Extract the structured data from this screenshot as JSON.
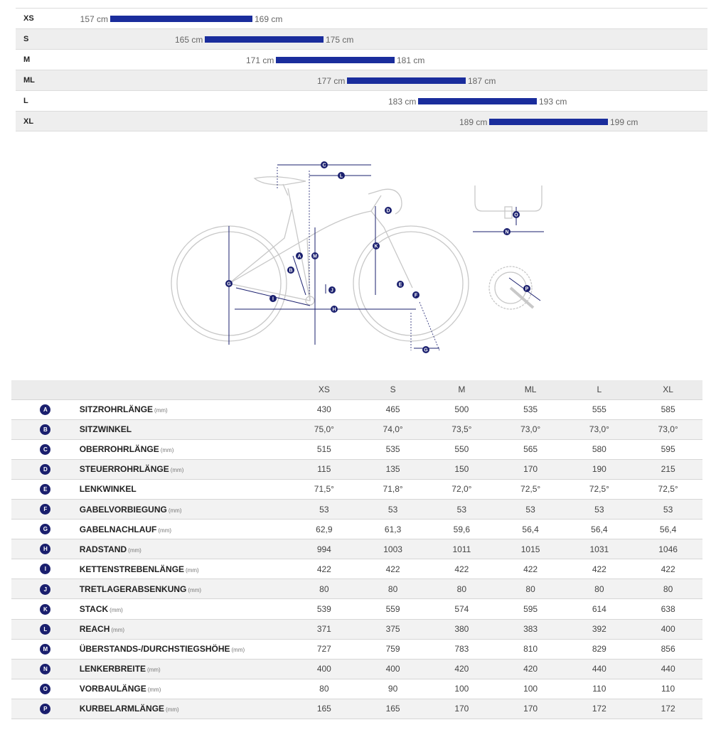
{
  "size_chart": {
    "rows": [
      {
        "size": "XS",
        "min": "157 cm",
        "max": "169 cm",
        "min_cm": 157,
        "max_cm": 169
      },
      {
        "size": "S",
        "min": "165 cm",
        "max": "175 cm",
        "min_cm": 165,
        "max_cm": 175
      },
      {
        "size": "M",
        "min": "171 cm",
        "max": "181 cm",
        "min_cm": 171,
        "max_cm": 181
      },
      {
        "size": "ML",
        "min": "177 cm",
        "max": "187 cm",
        "min_cm": 177,
        "max_cm": 187
      },
      {
        "size": "L",
        "min": "183 cm",
        "max": "193 cm",
        "min_cm": 183,
        "max_cm": 193
      },
      {
        "size": "XL",
        "min": "189 cm",
        "max": "199 cm",
        "min_cm": 189,
        "max_cm": 199
      }
    ]
  },
  "diagram": {
    "labels": [
      "A",
      "B",
      "C",
      "D",
      "E",
      "F",
      "G",
      "H",
      "I",
      "J",
      "K",
      "L",
      "M",
      "N",
      "O",
      "P"
    ]
  },
  "table": {
    "sizes": [
      "XS",
      "S",
      "M",
      "ML",
      "L",
      "XL"
    ],
    "rows": [
      {
        "letter": "A",
        "name": "SITZROHRLÄNGE",
        "unit": "(mm)",
        "values": [
          "430",
          "465",
          "500",
          "535",
          "555",
          "585"
        ]
      },
      {
        "letter": "B",
        "name": "SITZWINKEL",
        "unit": "",
        "values": [
          "75,0°",
          "74,0°",
          "73,5°",
          "73,0°",
          "73,0°",
          "73,0°"
        ]
      },
      {
        "letter": "C",
        "name": "OBERROHRLÄNGE",
        "unit": "(mm)",
        "values": [
          "515",
          "535",
          "550",
          "565",
          "580",
          "595"
        ]
      },
      {
        "letter": "D",
        "name": "STEUERROHRLÄNGE",
        "unit": "(mm)",
        "values": [
          "115",
          "135",
          "150",
          "170",
          "190",
          "215"
        ]
      },
      {
        "letter": "E",
        "name": "LENKWINKEL",
        "unit": "",
        "values": [
          "71,5°",
          "71,8°",
          "72,0°",
          "72,5°",
          "72,5°",
          "72,5°"
        ]
      },
      {
        "letter": "F",
        "name": "GABELVORBIEGUNG",
        "unit": "(mm)",
        "values": [
          "53",
          "53",
          "53",
          "53",
          "53",
          "53"
        ]
      },
      {
        "letter": "G",
        "name": "GABELNACHLAUF",
        "unit": "(mm)",
        "values": [
          "62,9",
          "61,3",
          "59,6",
          "56,4",
          "56,4",
          "56,4"
        ]
      },
      {
        "letter": "H",
        "name": "RADSTAND",
        "unit": "(mm)",
        "values": [
          "994",
          "1003",
          "1011",
          "1015",
          "1031",
          "1046"
        ]
      },
      {
        "letter": "I",
        "name": "KETTENSTREBENLÄNGE",
        "unit": "(mm)",
        "values": [
          "422",
          "422",
          "422",
          "422",
          "422",
          "422"
        ]
      },
      {
        "letter": "J",
        "name": "TRETLAGERABSENKUNG",
        "unit": "(mm)",
        "values": [
          "80",
          "80",
          "80",
          "80",
          "80",
          "80"
        ]
      },
      {
        "letter": "K",
        "name": "STACK",
        "unit": "(mm)",
        "values": [
          "539",
          "559",
          "574",
          "595",
          "614",
          "638"
        ]
      },
      {
        "letter": "L",
        "name": "REACH",
        "unit": "(mm)",
        "values": [
          "371",
          "375",
          "380",
          "383",
          "392",
          "400"
        ]
      },
      {
        "letter": "M",
        "name": "ÜBERSTANDS-/DURCHSTIEGSHÖHE",
        "unit": "(mm)",
        "values": [
          "727",
          "759",
          "783",
          "810",
          "829",
          "856"
        ]
      },
      {
        "letter": "N",
        "name": "LENKERBREITE",
        "unit": "(mm)",
        "values": [
          "400",
          "400",
          "420",
          "420",
          "440",
          "440"
        ]
      },
      {
        "letter": "O",
        "name": "VORBAULÄNGE",
        "unit": "(mm)",
        "values": [
          "80",
          "90",
          "100",
          "100",
          "110",
          "110"
        ]
      },
      {
        "letter": "P",
        "name": "KURBELARMLÄNGE",
        "unit": "(mm)",
        "values": [
          "165",
          "165",
          "170",
          "170",
          "172",
          "172"
        ]
      }
    ]
  }
}
